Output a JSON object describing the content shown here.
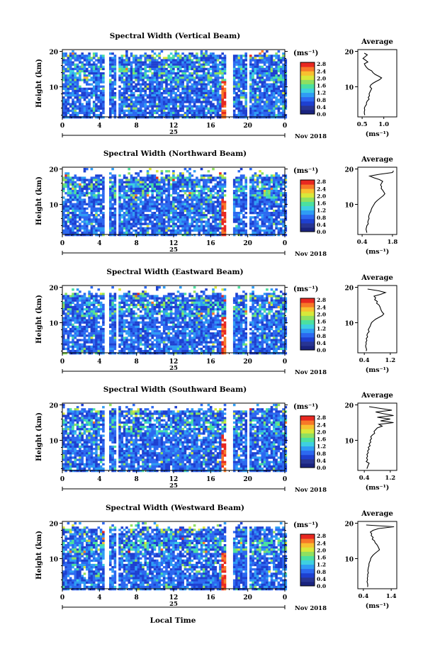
{
  "figure": {
    "x_axis_title": "Local Time",
    "colorbar_unit": "(ms⁻¹)",
    "colorbar_ticks": [
      "0.0",
      "0.4",
      "0.8",
      "1.2",
      "1.6",
      "2.0",
      "2.4",
      "2.8"
    ],
    "colorbar_colors": [
      "#1a237e",
      "#283593",
      "#1e40d0",
      "#2c68f0",
      "#2f9cf4",
      "#3ed0e0",
      "#4be0a0",
      "#8fe060",
      "#d8e83a",
      "#f8c030",
      "#f87828",
      "#e82820"
    ],
    "date_label": "Nov 2018",
    "day_label": "25",
    "average_title": "Average",
    "average_unit": "(ms⁻¹)",
    "y_axis_title": "Height (km)",
    "y_ticks": [
      10,
      20
    ],
    "x_ticks": [
      "0",
      "4",
      "8",
      "12",
      "16",
      "20",
      "0"
    ],
    "gaps_hours": [
      [
        4.3,
        4.9
      ],
      [
        5.6,
        5.9
      ],
      [
        17.6,
        18.3
      ],
      [
        19.7,
        20.1
      ]
    ]
  },
  "chart_data": [
    {
      "type": "heatmap",
      "title": "Spectral Width (Vertical Beam)",
      "xlabel": "",
      "ylabel": "Height (km)",
      "xlim": [
        0,
        24
      ],
      "ylim": [
        1.5,
        20.5
      ],
      "top_km": 19.5,
      "average": {
        "title": "Average",
        "xlabel": "(ms⁻¹)",
        "x_ticks": [
          0.5,
          1.0
        ],
        "xlim": [
          0.4,
          1.3
        ],
        "ylim": [
          1.5,
          20.5
        ],
        "profile": [
          [
            19.5,
            0.55
          ],
          [
            19,
            0.62
          ],
          [
            18.5,
            0.57
          ],
          [
            18,
            0.52
          ],
          [
            17.5,
            0.58
          ],
          [
            17,
            0.63
          ],
          [
            16.5,
            0.55
          ],
          [
            16,
            0.57
          ],
          [
            15.5,
            0.6
          ],
          [
            15,
            0.64
          ],
          [
            14.5,
            0.72
          ],
          [
            14,
            0.75
          ],
          [
            13.5,
            0.8
          ],
          [
            13,
            0.88
          ],
          [
            12.5,
            0.95
          ],
          [
            12,
            0.9
          ],
          [
            11.5,
            0.82
          ],
          [
            11,
            0.75
          ],
          [
            10.5,
            0.7
          ],
          [
            10,
            0.68
          ],
          [
            9.5,
            0.72
          ],
          [
            9,
            0.7
          ],
          [
            8.5,
            0.68
          ],
          [
            8,
            0.66
          ],
          [
            7.5,
            0.67
          ],
          [
            7,
            0.64
          ],
          [
            6.5,
            0.66
          ],
          [
            6,
            0.62
          ],
          [
            5.5,
            0.6
          ],
          [
            5,
            0.6
          ],
          [
            4.5,
            0.57
          ],
          [
            4,
            0.55
          ],
          [
            3.5,
            0.56
          ],
          [
            3,
            0.55
          ],
          [
            2.5,
            0.55
          ],
          [
            2,
            0.56
          ]
        ]
      }
    },
    {
      "type": "heatmap",
      "title": "Spectral Width (Northward Beam)",
      "xlabel": "",
      "ylabel": "Height (km)",
      "xlim": [
        0,
        24
      ],
      "ylim": [
        1.5,
        20.5
      ],
      "top_km": 18.5,
      "average": {
        "title": "Average",
        "xlabel": "(ms⁻¹)",
        "x_ticks": [
          0.4,
          1.8
        ],
        "xlim": [
          0.2,
          2.0
        ],
        "ylim": [
          1.5,
          20.5
        ],
        "profile": [
          [
            19.5,
            1.85
          ],
          [
            19,
            1.8
          ],
          [
            18.5,
            1.2
          ],
          [
            18,
            0.75
          ],
          [
            17.5,
            0.95
          ],
          [
            17,
            1.2
          ],
          [
            16.5,
            1.35
          ],
          [
            16,
            1.3
          ],
          [
            15.5,
            1.25
          ],
          [
            15,
            1.3
          ],
          [
            14.5,
            1.28
          ],
          [
            14,
            1.35
          ],
          [
            13.5,
            1.4
          ],
          [
            13,
            1.45
          ],
          [
            12.5,
            1.38
          ],
          [
            12,
            1.28
          ],
          [
            11.5,
            1.18
          ],
          [
            11,
            1.08
          ],
          [
            10.5,
            1.0
          ],
          [
            10,
            0.95
          ],
          [
            9.5,
            0.9
          ],
          [
            9,
            0.85
          ],
          [
            8.5,
            0.82
          ],
          [
            8,
            0.8
          ],
          [
            7.5,
            0.75
          ],
          [
            7,
            0.72
          ],
          [
            6.5,
            0.7
          ],
          [
            6,
            0.72
          ],
          [
            5.5,
            0.68
          ],
          [
            5,
            0.66
          ],
          [
            4.5,
            0.68
          ],
          [
            4,
            0.62
          ],
          [
            3.5,
            0.6
          ],
          [
            3,
            0.58
          ],
          [
            2.5,
            0.6
          ],
          [
            2,
            0.62
          ]
        ]
      }
    },
    {
      "type": "heatmap",
      "title": "Spectral Width (Eastward Beam)",
      "xlabel": "",
      "ylabel": "Height (km)",
      "xlim": [
        0,
        24
      ],
      "ylim": [
        1.5,
        20.5
      ],
      "top_km": 18.5,
      "average": {
        "title": "Average",
        "xlabel": "(ms⁻¹)",
        "x_ticks": [
          0.4,
          1.2
        ],
        "xlim": [
          0.2,
          1.4
        ],
        "ylim": [
          1.5,
          20.5
        ],
        "profile": [
          [
            19.5,
            0.5
          ],
          [
            19,
            0.85
          ],
          [
            18.5,
            1.05
          ],
          [
            18,
            0.9
          ],
          [
            17.5,
            0.7
          ],
          [
            17,
            0.75
          ],
          [
            16.5,
            0.72
          ],
          [
            16,
            0.8
          ],
          [
            15.5,
            0.78
          ],
          [
            15,
            0.85
          ],
          [
            14.5,
            0.88
          ],
          [
            14,
            0.9
          ],
          [
            13.5,
            0.92
          ],
          [
            13,
            0.95
          ],
          [
            12.5,
            1.0
          ],
          [
            12,
            0.95
          ],
          [
            11.5,
            0.85
          ],
          [
            11,
            0.75
          ],
          [
            10.5,
            0.68
          ],
          [
            10,
            0.62
          ],
          [
            9.5,
            0.6
          ],
          [
            9,
            0.58
          ],
          [
            8.5,
            0.55
          ],
          [
            8,
            0.52
          ],
          [
            7.5,
            0.55
          ],
          [
            7,
            0.5
          ],
          [
            6.5,
            0.48
          ],
          [
            6,
            0.5
          ],
          [
            5.5,
            0.46
          ],
          [
            5,
            0.48
          ],
          [
            4.5,
            0.45
          ],
          [
            4,
            0.46
          ],
          [
            3.5,
            0.44
          ],
          [
            3,
            0.45
          ],
          [
            2.5,
            0.47
          ],
          [
            2,
            0.46
          ]
        ]
      }
    },
    {
      "type": "heatmap",
      "title": "Spectral Width (Southward Beam)",
      "xlabel": "",
      "ylabel": "Height (km)",
      "xlim": [
        0,
        24
      ],
      "ylim": [
        1.5,
        20.5
      ],
      "top_km": 19.0,
      "average": {
        "title": "Average",
        "xlabel": "(ms⁻¹)",
        "x_ticks": [
          0.4,
          1.2
        ],
        "xlim": [
          0.2,
          1.4
        ],
        "ylim": [
          1.5,
          20.5
        ],
        "profile": [
          [
            19.5,
            0.55
          ],
          [
            19,
            0.9
          ],
          [
            18.5,
            1.25
          ],
          [
            18,
            0.75
          ],
          [
            17.5,
            1.0
          ],
          [
            17,
            1.3
          ],
          [
            16.5,
            0.8
          ],
          [
            16,
            1.2
          ],
          [
            15.5,
            0.9
          ],
          [
            15,
            1.3
          ],
          [
            14.5,
            0.85
          ],
          [
            14,
            0.95
          ],
          [
            13.5,
            0.8
          ],
          [
            13,
            0.75
          ],
          [
            12.5,
            0.7
          ],
          [
            12,
            0.72
          ],
          [
            11.5,
            0.65
          ],
          [
            11,
            0.6
          ],
          [
            10.5,
            0.62
          ],
          [
            10,
            0.58
          ],
          [
            9.5,
            0.6
          ],
          [
            9,
            0.55
          ],
          [
            8.5,
            0.58
          ],
          [
            8,
            0.52
          ],
          [
            7.5,
            0.55
          ],
          [
            7,
            0.5
          ],
          [
            6.5,
            0.52
          ],
          [
            6,
            0.48
          ],
          [
            5.5,
            0.5
          ],
          [
            5,
            0.47
          ],
          [
            4.5,
            0.5
          ],
          [
            4,
            0.46
          ],
          [
            3.5,
            0.55
          ],
          [
            3,
            0.52
          ],
          [
            2.5,
            0.5
          ],
          [
            2,
            0.48
          ]
        ]
      }
    },
    {
      "type": "heatmap",
      "title": "Spectral Width (Westward Beam)",
      "xlabel": "",
      "ylabel": "Height (km)",
      "xlim": [
        0,
        24
      ],
      "ylim": [
        1.5,
        20.5
      ],
      "top_km": 19.0,
      "average": {
        "title": "Average",
        "xlabel": "(ms⁻¹)",
        "x_ticks": [
          0.4,
          1.4
        ],
        "xlim": [
          0.2,
          1.6
        ],
        "ylim": [
          1.5,
          20.5
        ],
        "profile": [
          [
            19.5,
            0.5
          ],
          [
            19,
            1.5
          ],
          [
            18.5,
            0.95
          ],
          [
            18,
            0.75
          ],
          [
            17.5,
            0.65
          ],
          [
            17,
            0.7
          ],
          [
            16.5,
            0.68
          ],
          [
            16,
            0.75
          ],
          [
            15.5,
            0.72
          ],
          [
            15,
            0.8
          ],
          [
            14.5,
            0.82
          ],
          [
            14,
            0.88
          ],
          [
            13.5,
            0.92
          ],
          [
            13,
            0.95
          ],
          [
            12.5,
            0.98
          ],
          [
            12,
            0.9
          ],
          [
            11.5,
            0.82
          ],
          [
            11,
            0.75
          ],
          [
            10.5,
            0.7
          ],
          [
            10,
            0.66
          ],
          [
            9.5,
            0.65
          ],
          [
            9,
            0.62
          ],
          [
            8.5,
            0.6
          ],
          [
            8,
            0.6
          ],
          [
            7.5,
            0.58
          ],
          [
            7,
            0.57
          ],
          [
            6.5,
            0.56
          ],
          [
            6,
            0.58
          ],
          [
            5.5,
            0.55
          ],
          [
            5,
            0.56
          ],
          [
            4.5,
            0.54
          ],
          [
            4,
            0.55
          ],
          [
            3.5,
            0.53
          ],
          [
            3,
            0.55
          ],
          [
            2.5,
            0.56
          ],
          [
            2,
            0.55
          ]
        ]
      }
    }
  ]
}
